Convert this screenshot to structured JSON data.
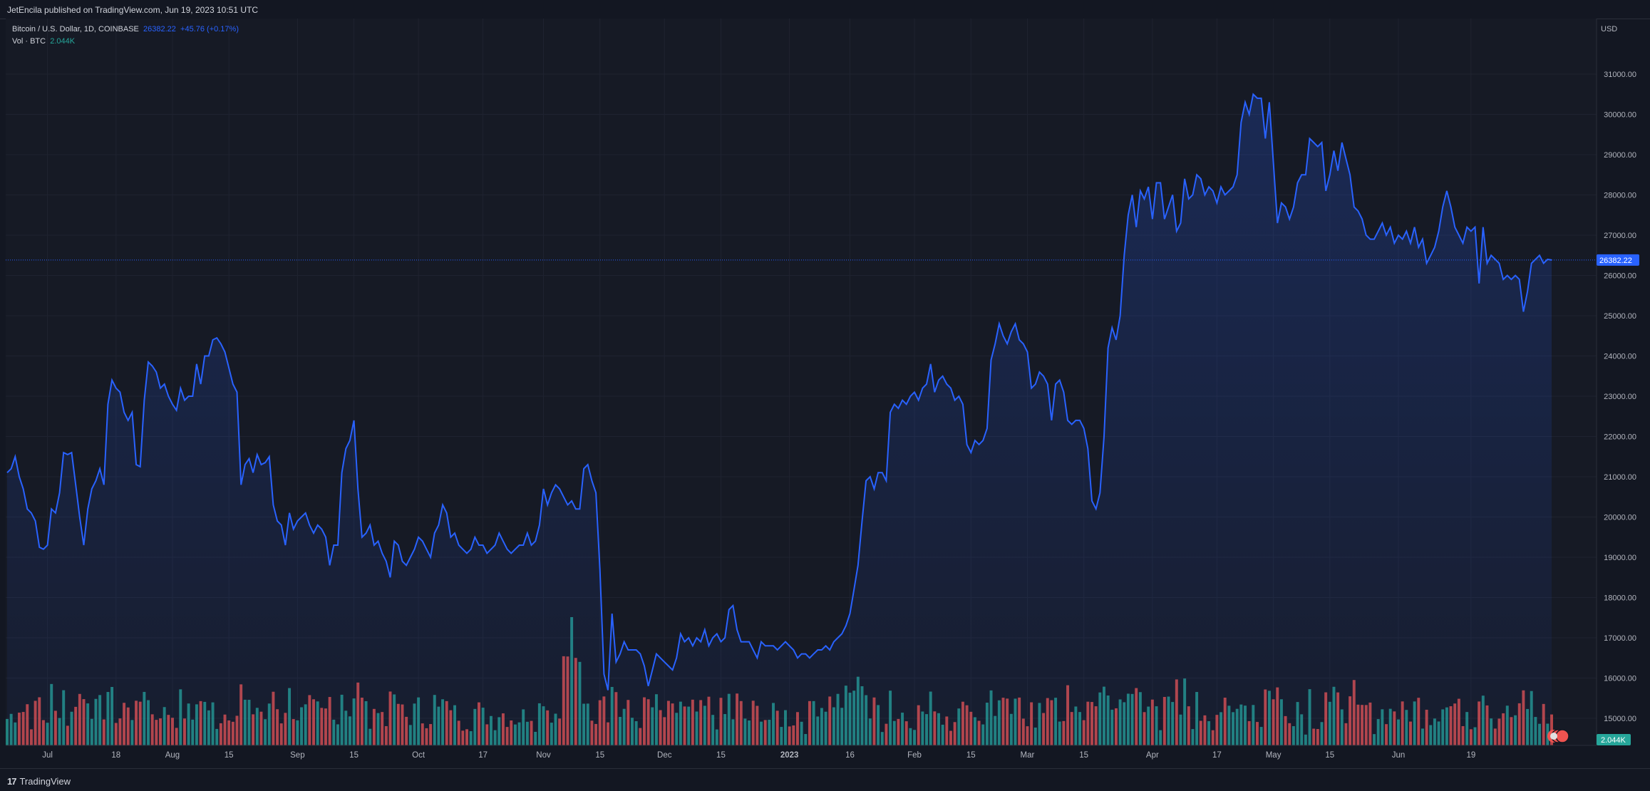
{
  "header": {
    "published": "JetEncila published on TradingView.com, Jun 19, 2023 10:51 UTC"
  },
  "legend": {
    "symbol": "Bitcoin / U.S. Dollar, 1D, COINBASE",
    "last": "26382.22",
    "change": "+45.76 (+0.17%)",
    "volume_label": "Vol · BTC",
    "volume_value": "2.044K"
  },
  "price_axis": {
    "currency": "USD",
    "ticks": [
      "31000.00",
      "30000.00",
      "29000.00",
      "28000.00",
      "27000.00",
      "26000.00",
      "25000.00",
      "24000.00",
      "23000.00",
      "22000.00",
      "21000.00",
      "20000.00",
      "19000.00",
      "18000.00",
      "17000.00",
      "16000.00",
      "15000.00"
    ],
    "last_price_label": "26382.22",
    "volume_label": "2.044K"
  },
  "time_axis": {
    "ticks": [
      "Jul",
      "18",
      "Aug",
      "15",
      "Sep",
      "15",
      "Oct",
      "17",
      "Nov",
      "15",
      "Dec",
      "15",
      "2023",
      "16",
      "Feb",
      "15",
      "Mar",
      "15",
      "Apr",
      "17",
      "May",
      "15",
      "Jun",
      "19"
    ]
  },
  "footer": {
    "brand": "TradingView"
  },
  "colors": {
    "background": "#131722",
    "line": "#2962ff",
    "volume_up": "#26a69a",
    "volume_down": "#ef5350",
    "last_price_badge": "#2962ff",
    "volume_badge": "#26a69a"
  },
  "chart_data": {
    "type": "area",
    "x_start": "2022-06-21",
    "x_end": "2023-06-19",
    "ylim": [
      14400,
      31500
    ],
    "grid": true,
    "series": [
      {
        "values": [
          21100,
          21200,
          21500,
          21000,
          20700,
          20200,
          20100,
          19900,
          19250,
          19200,
          19300,
          20200,
          20100,
          20600,
          21600,
          21550,
          21600,
          20800,
          20000,
          19300,
          20200,
          20700,
          20900,
          21200,
          20800,
          22800,
          23400,
          23200,
          23100,
          22600,
          22400,
          22600,
          21300,
          21250,
          22900,
          23850,
          23750,
          23600,
          23200,
          23300,
          23000,
          22800,
          22650,
          23200,
          22900,
          23000,
          23000,
          23800,
          23300,
          24000,
          24000,
          24400,
          24450,
          24300,
          24100,
          23700,
          23300,
          23100,
          20800,
          21300,
          21450,
          21100,
          21550,
          21300,
          21350,
          21500,
          20300,
          19900,
          19800,
          19300,
          20100,
          19700,
          19900,
          20000,
          20100,
          19800,
          19600,
          19800,
          19700,
          19500,
          18800,
          19300,
          19300,
          21100,
          21700,
          21900,
          22400,
          20700,
          19500,
          19600,
          19800,
          19300,
          19400,
          19100,
          18900,
          18500,
          19400,
          19300,
          18900,
          18800,
          19000,
          19200,
          19500,
          19400,
          19200,
          19000,
          19600,
          19800,
          20300,
          20100,
          19500,
          19600,
          19300,
          19200,
          19100,
          19200,
          19500,
          19300,
          19300,
          19100,
          19200,
          19300,
          19600,
          19400,
          19200,
          19100,
          19200,
          19300,
          19300,
          19600,
          19300,
          19400,
          19800,
          20700,
          20300,
          20600,
          20800,
          20700,
          20500,
          20300,
          20400,
          20200,
          20200,
          21200,
          21300,
          20900,
          20600,
          18700,
          16100,
          15700,
          17600,
          16400,
          16600,
          16900,
          16700,
          16700,
          16700,
          16600,
          16300,
          15800,
          16200,
          16600,
          16500,
          16400,
          16300,
          16200,
          16500,
          17100,
          16900,
          17000,
          16800,
          17000,
          16900,
          17200,
          16800,
          17000,
          17100,
          16900,
          17000,
          17700,
          17800,
          17200,
          16900,
          16900,
          16900,
          16700,
          16500,
          16900,
          16800,
          16800,
          16800,
          16700,
          16800,
          16900,
          16800,
          16700,
          16500,
          16600,
          16600,
          16500,
          16600,
          16700,
          16700,
          16800,
          16700,
          16900,
          17000,
          17100,
          17300,
          17600,
          18200,
          18800,
          19900,
          20900,
          21000,
          20700,
          21100,
          21100,
          20900,
          22600,
          22800,
          22700,
          22900,
          22800,
          23000,
          23100,
          22900,
          23200,
          23300,
          23800,
          23100,
          23400,
          23500,
          23300,
          23200,
          22900,
          23000,
          22800,
          21800,
          21600,
          21900,
          21800,
          21900,
          22200,
          23900,
          24300,
          24800,
          24500,
          24300,
          24600,
          24800,
          24400,
          24300,
          24100,
          23200,
          23300,
          23600,
          23500,
          23300,
          22400,
          23300,
          23400,
          23100,
          22400,
          22300,
          22400,
          22400,
          22200,
          21700,
          20400,
          20200,
          20600,
          22000,
          24200,
          24700,
          24400,
          25000,
          26500,
          27500,
          28000,
          27200,
          28100,
          27900,
          28200,
          27400,
          28300,
          28300,
          27400,
          27700,
          28000,
          27100,
          27300,
          28400,
          27900,
          28000,
          28500,
          28400,
          28000,
          28200,
          28100,
          27800,
          28200,
          28000,
          28100,
          28200,
          28500,
          29800,
          30300,
          30000,
          30500,
          30400,
          30400,
          29400,
          30300,
          28800,
          27300,
          27800,
          27700,
          27400,
          27700,
          28300,
          28500,
          28500,
          29400,
          29300,
          29200,
          29300,
          28100,
          28500,
          29100,
          28600,
          29300,
          28900,
          28500,
          27700,
          27600,
          27400,
          27000,
          26900,
          26900,
          27100,
          27300,
          27000,
          27200,
          26800,
          27000,
          26900,
          27100,
          26800,
          27200,
          26700,
          26900,
          26300,
          26500,
          26700,
          27100,
          27700,
          28100,
          27700,
          27200,
          27000,
          26800,
          27200,
          27100,
          27200,
          25800,
          27200,
          26300,
          26500,
          26400,
          26300,
          25900,
          26000,
          25900,
          26000,
          25900,
          25100,
          25600,
          26300,
          26400,
          26500,
          26300,
          26400,
          26382
        ]
      }
    ],
    "volume_series": {
      "name": "Vol · BTC",
      "last_value": "2.044K"
    }
  }
}
